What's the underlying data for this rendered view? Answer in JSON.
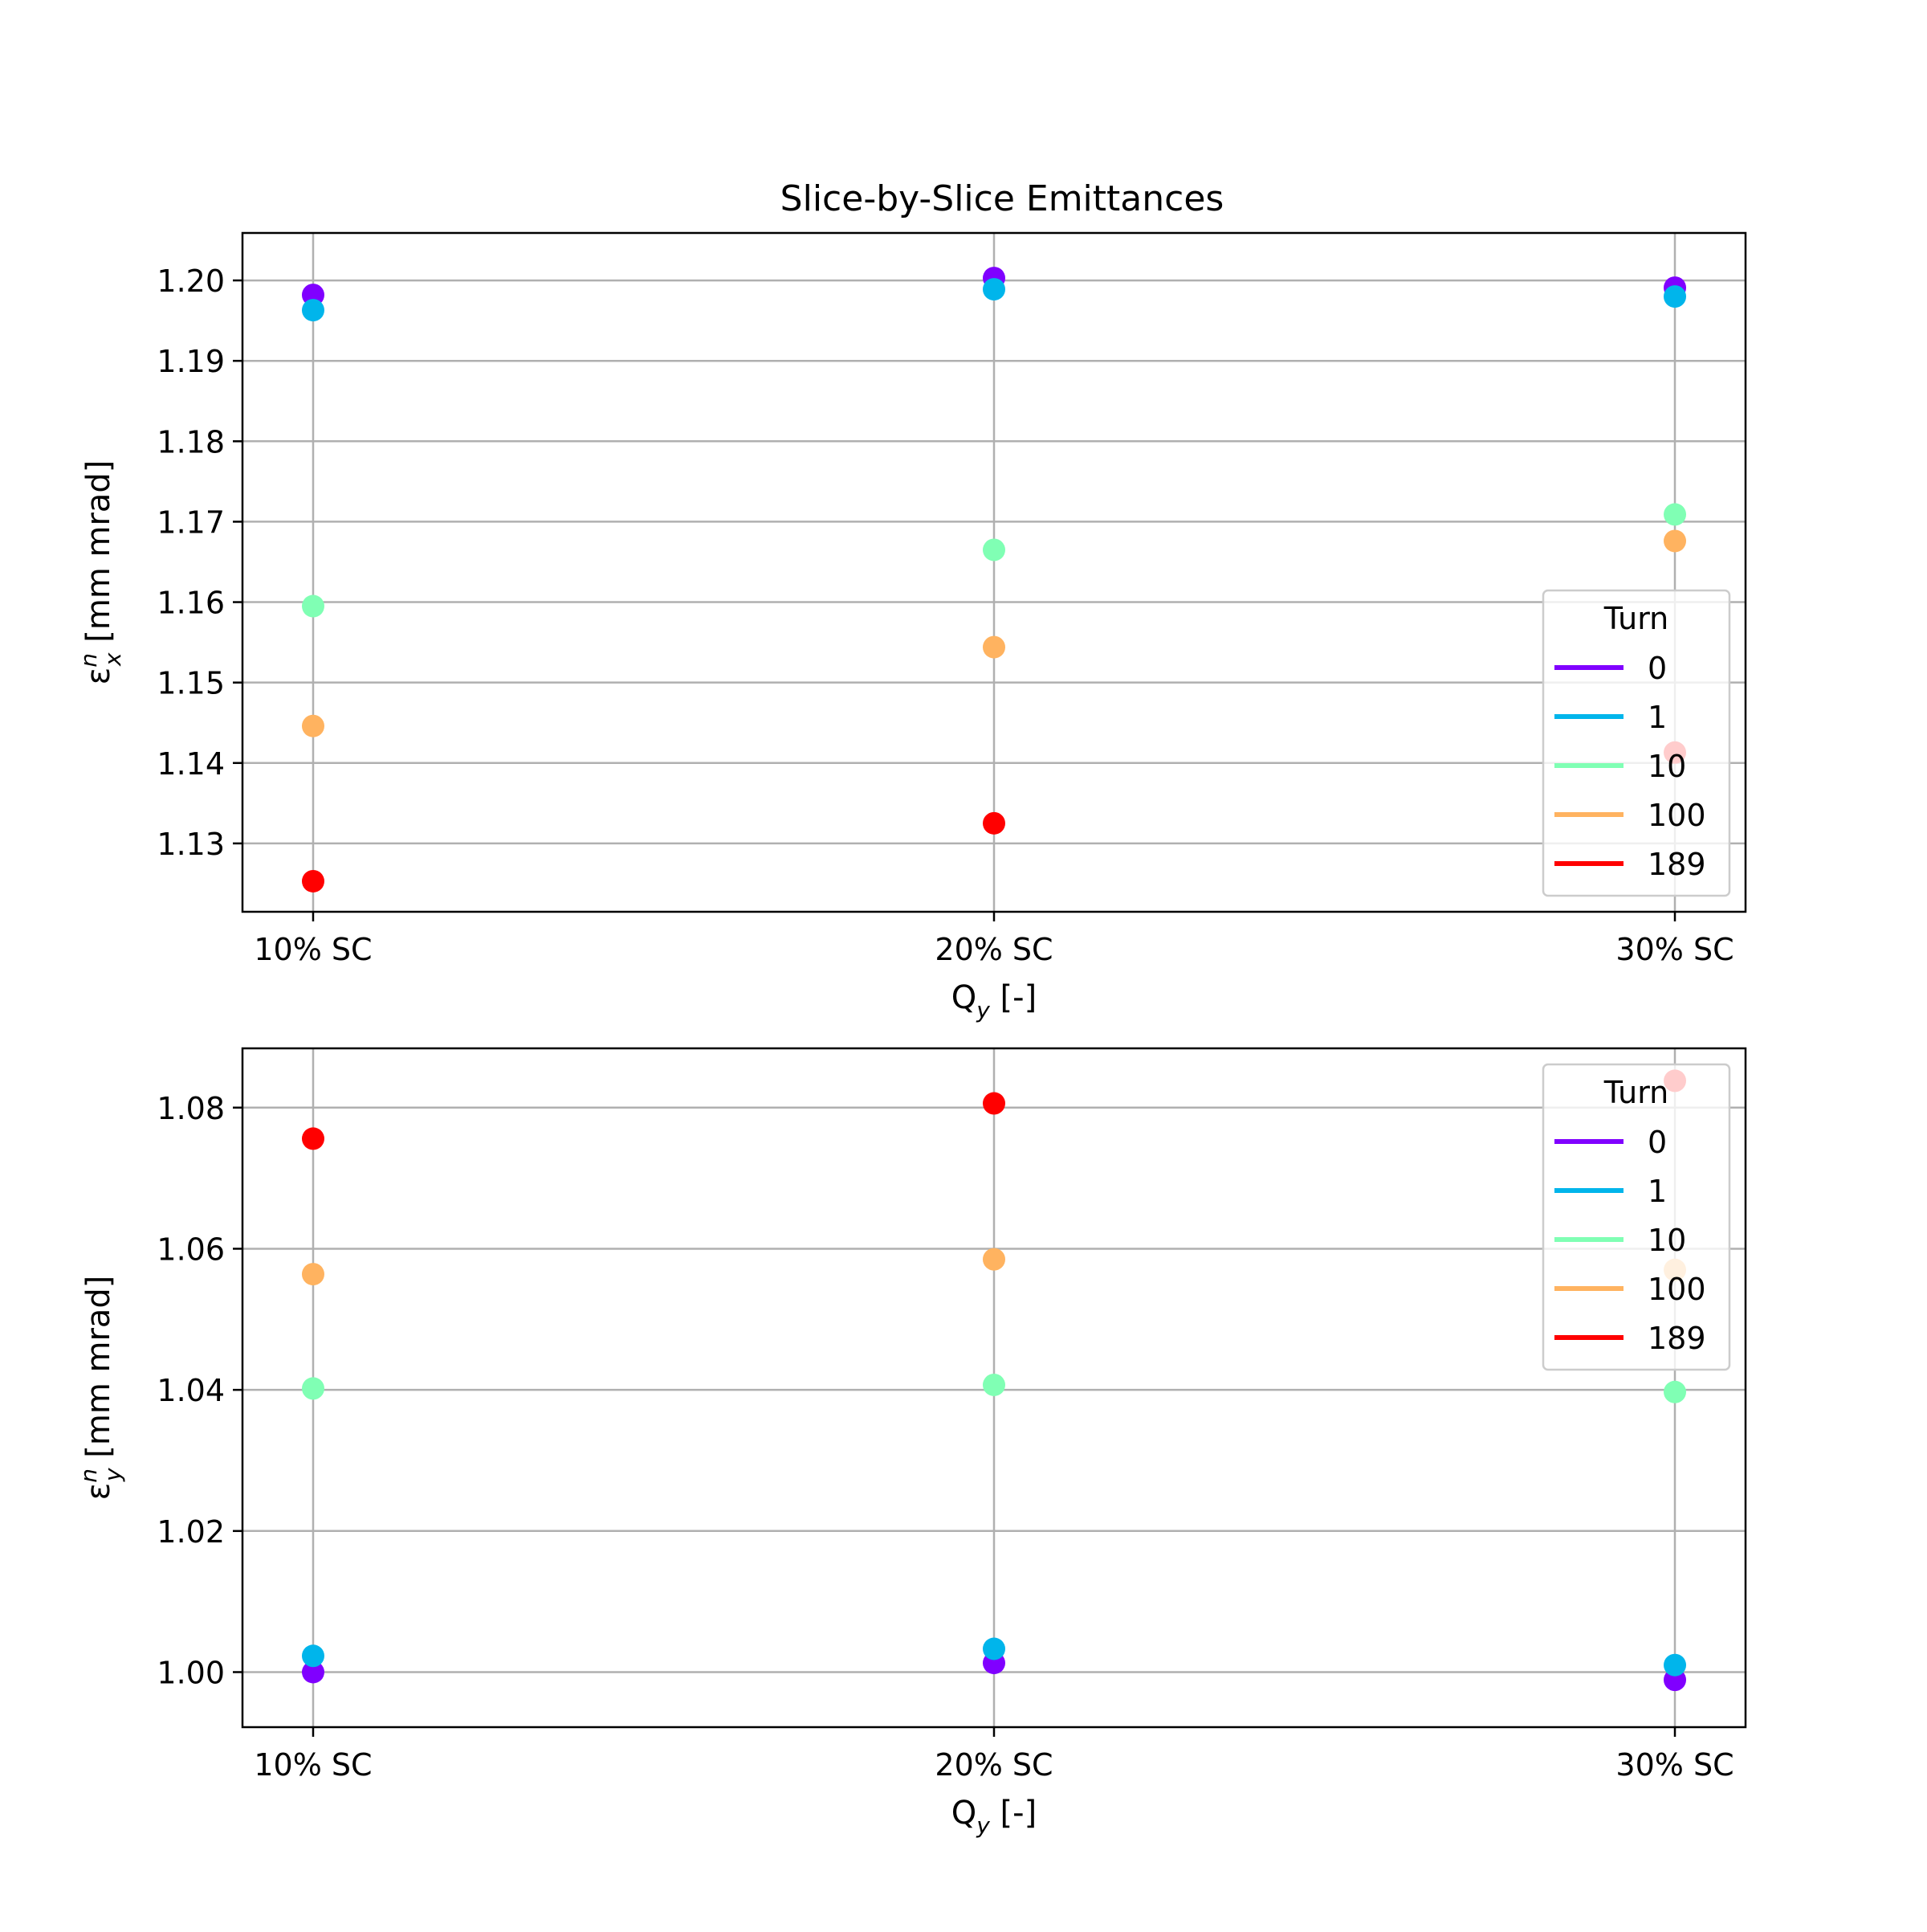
{
  "figure_title": "Slice-by-Slice Emittances",
  "colors": {
    "turn_0": "#8000ff",
    "turn_1": "#00b5eb",
    "turn_10": "#80ffb4",
    "turn_100": "#ffb360",
    "turn_189": "#ff0000",
    "grid": "#b0b0b0",
    "axes": "#000000"
  },
  "chart_data": [
    {
      "type": "scatter",
      "title": "Slice-by-Slice Emittances",
      "xlabel": "Q_y [-]",
      "ylabel": "ε_x^n [mm mrad]",
      "categories": [
        "10% SC",
        "20% SC",
        "30% SC"
      ],
      "ylim": [
        1.1215,
        1.2059
      ],
      "yticks": [
        "1.13",
        "1.14",
        "1.15",
        "1.16",
        "1.17",
        "1.18",
        "1.19",
        "1.20"
      ],
      "grid": true,
      "legend": {
        "title": "Turn",
        "placement": "lower-right"
      },
      "series": [
        {
          "name": "0",
          "values": [
            1.1982,
            1.2003,
            1.1991
          ]
        },
        {
          "name": "1",
          "values": [
            1.1963,
            1.1989,
            1.198
          ]
        },
        {
          "name": "10",
          "values": [
            1.1595,
            1.1665,
            1.1709
          ]
        },
        {
          "name": "100",
          "values": [
            1.1446,
            1.1544,
            1.1676
          ]
        },
        {
          "name": "189",
          "values": [
            1.1253,
            1.1325,
            1.1413
          ]
        }
      ]
    },
    {
      "type": "scatter",
      "title": "",
      "xlabel": "Q_y [-]",
      "ylabel": "ε_y^n [mm mrad]",
      "categories": [
        "10% SC",
        "20% SC",
        "30% SC"
      ],
      "ylim": [
        0.9922,
        1.0884
      ],
      "yticks": [
        "1.00",
        "1.02",
        "1.04",
        "1.06",
        "1.08"
      ],
      "grid": true,
      "legend": {
        "title": "Turn",
        "placement": "upper-right"
      },
      "series": [
        {
          "name": "0",
          "values": [
            1.0,
            1.0013,
            0.9989
          ]
        },
        {
          "name": "1",
          "values": [
            1.0023,
            1.0033,
            1.001
          ]
        },
        {
          "name": "10",
          "values": [
            1.0402,
            1.0407,
            1.0397
          ]
        },
        {
          "name": "100",
          "values": [
            1.0564,
            1.0585,
            1.057
          ]
        },
        {
          "name": "189",
          "values": [
            1.0756,
            1.0806,
            1.0838
          ]
        }
      ]
    }
  ]
}
